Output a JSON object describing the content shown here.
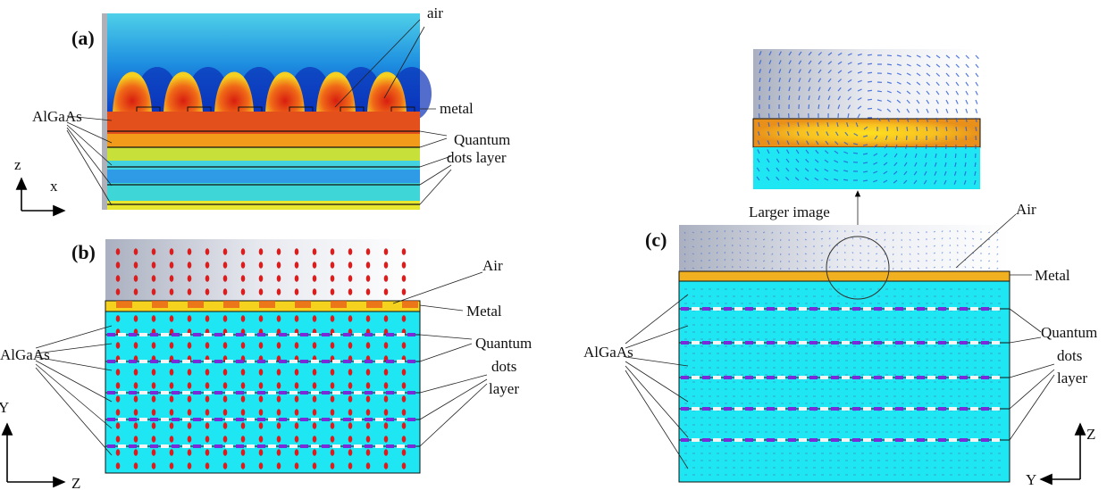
{
  "panels": {
    "a": {
      "label": "(a)",
      "air": "air",
      "metal": "metal",
      "algaas": "AlGaAs",
      "quantum": [
        "Quantum",
        "dots layer"
      ],
      "axis_z": "z",
      "axis_x": "x"
    },
    "b": {
      "label": "(b)",
      "air": "Air",
      "metal": "Metal",
      "algaas": "AlGaAs",
      "quantum": [
        "Quantum",
        "dots",
        "layer"
      ],
      "axis_y": "Y",
      "axis_z": "Z"
    },
    "c": {
      "label": "(c)",
      "inset_caption": "Larger image",
      "air": "Air",
      "metal": "Metal",
      "algaas": "AlGaAs",
      "quantum": [
        "Quantum",
        "dots",
        "layer"
      ],
      "axis_z": "Z",
      "axis_y": "Y"
    }
  }
}
